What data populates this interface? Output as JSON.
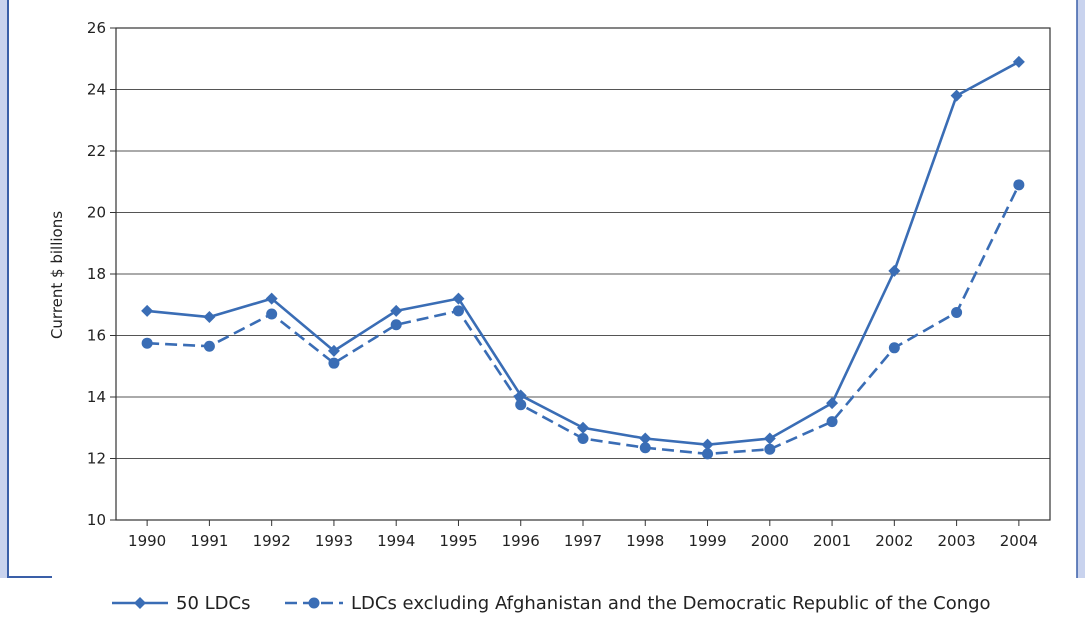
{
  "chart_data": {
    "type": "line",
    "title": "",
    "xlabel": "",
    "ylabel": "Current $ billions",
    "ylim": [
      10,
      26
    ],
    "yticks": [
      10,
      12,
      14,
      16,
      18,
      20,
      22,
      24,
      26
    ],
    "grid": true,
    "legend_position": "bottom",
    "categories": [
      "1990",
      "1991",
      "1992",
      "1993",
      "1994",
      "1995",
      "1996",
      "1997",
      "1998",
      "1999",
      "2000",
      "2001",
      "2002",
      "2003",
      "2004"
    ],
    "series": [
      {
        "name": "50 LDCs",
        "marker": "diamond",
        "dash": "solid",
        "color": "#3a6db5",
        "values": [
          16.8,
          16.6,
          17.2,
          15.5,
          16.8,
          17.2,
          14.05,
          13.0,
          12.65,
          12.45,
          12.65,
          13.8,
          18.1,
          23.8,
          24.9
        ]
      },
      {
        "name": "LDCs excluding Afghanistan and the Democratic Republic of the Congo",
        "marker": "circle",
        "dash": "dashed",
        "color": "#3a6db5",
        "values": [
          15.75,
          15.65,
          16.7,
          15.1,
          16.35,
          16.8,
          13.75,
          12.65,
          12.35,
          12.15,
          12.3,
          13.2,
          15.6,
          16.75,
          20.9
        ]
      }
    ]
  },
  "colors": {
    "series": "#3a6db5",
    "frame_accent": "#3a5fa8",
    "grid": "#555555"
  }
}
